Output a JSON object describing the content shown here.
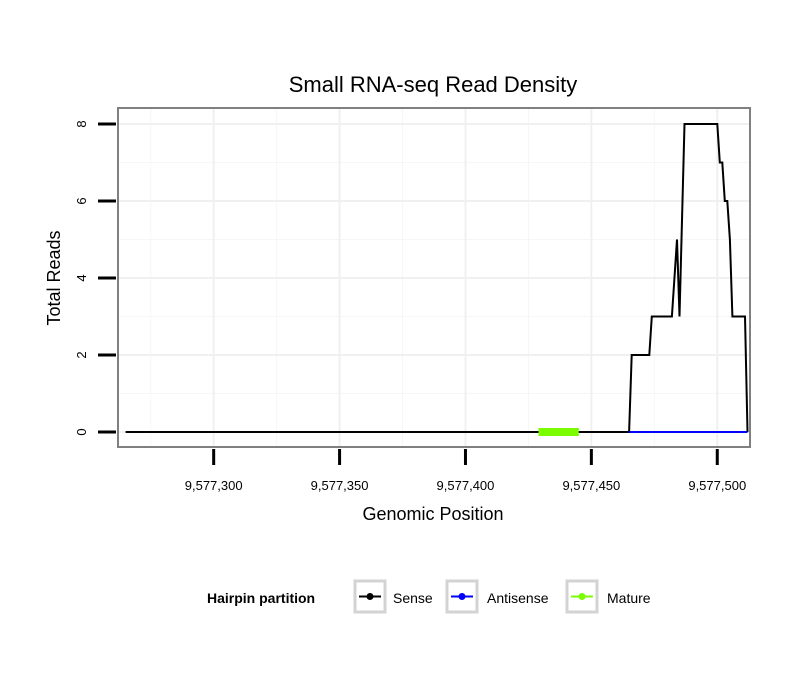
{
  "chart_data": {
    "type": "line",
    "title": "Small RNA-seq Read Density",
    "xlabel": "Genomic Position",
    "ylabel": "Total Reads",
    "xlim": [
      9577262,
      9577513
    ],
    "ylim": [
      0,
      8
    ],
    "grid": true,
    "x_ticks": [
      9577300,
      9577350,
      9577400,
      9577450,
      9577500
    ],
    "x_tick_labels": [
      "9,577,300",
      "9,577,350",
      "9,577,400",
      "9,577,450",
      "9,577,500"
    ],
    "y_ticks": [
      0,
      2,
      4,
      6,
      8
    ],
    "y_tick_labels": [
      "0",
      "2",
      "4",
      "6",
      "8"
    ],
    "legend": {
      "title": "Hairpin partition",
      "position": "bottom",
      "entries": [
        "Sense",
        "Antisense",
        "Mature"
      ]
    },
    "series": [
      {
        "name": "Sense",
        "color": "#000000",
        "points": [
          [
            9577265,
            0
          ],
          [
            9577465,
            0
          ],
          [
            9577466,
            2
          ],
          [
            9577473,
            2
          ],
          [
            9577474,
            3
          ],
          [
            9577482,
            3
          ],
          [
            9577484,
            5
          ],
          [
            9577485,
            3
          ],
          [
            9577487,
            8
          ],
          [
            9577500,
            8
          ],
          [
            9577501,
            7
          ],
          [
            9577502,
            7
          ],
          [
            9577503,
            6
          ],
          [
            9577504,
            6
          ],
          [
            9577505,
            5
          ],
          [
            9577506,
            3
          ],
          [
            9577511,
            3
          ],
          [
            9577512,
            0
          ]
        ]
      },
      {
        "name": "Antisense",
        "color": "#0000ff",
        "points": [
          [
            9577465,
            0
          ],
          [
            9577512,
            0
          ]
        ]
      },
      {
        "name": "Mature",
        "color": "#7cfc00",
        "points": [
          [
            9577429,
            0
          ],
          [
            9577445,
            0
          ]
        ]
      }
    ]
  }
}
